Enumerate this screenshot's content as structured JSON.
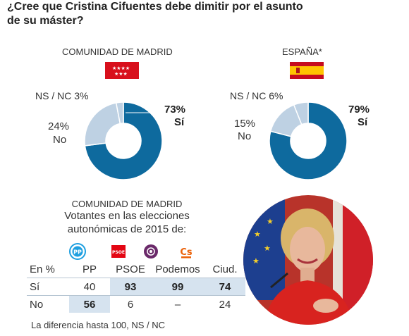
{
  "title": "¿Cree que Cristina Cifuentes debe dimitir por el asunto de su máster?",
  "donut_charts": {
    "madrid": {
      "region": "COMUNIDAD DE MADRID",
      "flag": "flag-comunidad-de-madrid-icon",
      "yes_pct_label": "73%",
      "yes_label": "Sí",
      "no_pct_label": "24%",
      "no_label": "No",
      "nsnc_label": "NS / NC 3%"
    },
    "spain": {
      "region": "ESPAÑA*",
      "flag": "flag-spain-icon",
      "yes_pct_label": "79%",
      "yes_label": "Sí",
      "no_pct_label": "15%",
      "no_label": "No",
      "nsnc_label": "NS / NC 6%"
    }
  },
  "chart_data": [
    {
      "type": "pie",
      "region": "COMUNIDAD DE MADRID",
      "slices": [
        {
          "label": "Sí",
          "value": 73,
          "color": "#0e6a9e"
        },
        {
          "label": "No",
          "value": 24,
          "color": "#bed1e3"
        },
        {
          "label": "NS / NC",
          "value": 3,
          "color": "#bed1e3"
        }
      ]
    },
    {
      "type": "pie",
      "region": "ESPAÑA*",
      "slices": [
        {
          "label": "Sí",
          "value": 79,
          "color": "#0e6a9e"
        },
        {
          "label": "No",
          "value": 15,
          "color": "#bed1e3"
        },
        {
          "label": "NS / NC",
          "value": 6,
          "color": "#bed1e3"
        }
      ]
    },
    {
      "type": "table",
      "title": "COMUNIDAD DE MADRID",
      "subtitle": "Votantes en las elecciones autonómicas de 2015 de:",
      "corner_label": "En %",
      "columns": [
        "PP",
        "PSOE",
        "Podemos",
        "Ciud."
      ],
      "rows": [
        {
          "label": "Sí",
          "values": [
            "40",
            "93",
            "99",
            "74"
          ],
          "highlight": [
            false,
            true,
            true,
            true
          ]
        },
        {
          "label": "No",
          "values": [
            "56",
            "6",
            "–",
            "24"
          ],
          "highlight": [
            true,
            false,
            false,
            false
          ]
        }
      ]
    }
  ],
  "table_section": {
    "title": "COMUNIDAD DE MADRID",
    "subtitle_line1": "Votantes en las elecciones",
    "subtitle_line2": "autonómicas de 2015 de:",
    "corner_label": "En %",
    "party_logos": [
      "pp-logo-icon",
      "psoe-logo-icon",
      "podemos-logo-icon",
      "ciudadanos-logo-icon"
    ],
    "columns": [
      "PP",
      "PSOE",
      "Podemos",
      "Ciud."
    ],
    "row_si": {
      "label": "Sí",
      "values": [
        "40",
        "93",
        "99",
        "74"
      ]
    },
    "row_no": {
      "label": "No",
      "values": [
        "56",
        "6",
        "–",
        "24"
      ]
    },
    "footnote": "La diferencia hasta 100, NS / NC"
  },
  "photo": {
    "icon": "portrait-photo"
  },
  "colors": {
    "yes_blue": "#0e6a9e",
    "light_blue": "#bed1e3",
    "highlight_cell": "#d6e3ef",
    "madrid_red": "#d8101c",
    "spain_red": "#c60b1e",
    "spain_yellow": "#ffc400",
    "pp_blue": "#1e9fe0",
    "psoe_red": "#e30613",
    "podemos_purple": "#6b2a6a",
    "cs_orange": "#eb6109"
  }
}
